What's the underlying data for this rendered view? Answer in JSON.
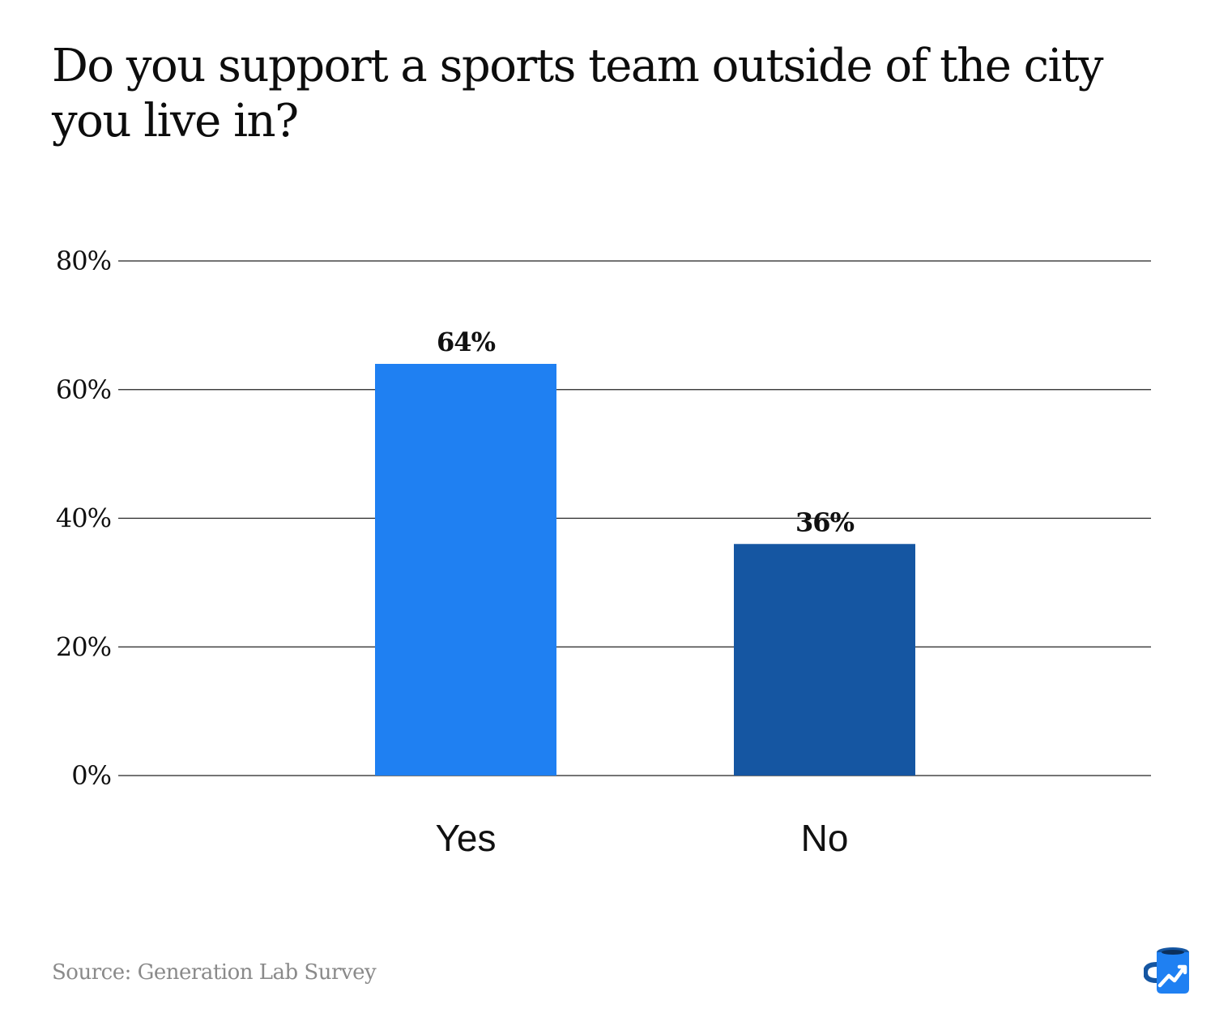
{
  "chart_data": {
    "type": "bar",
    "title": "Do you support a sports team outside of the city you live in?",
    "categories": [
      "Yes",
      "No"
    ],
    "values": [
      64,
      36
    ],
    "data_labels": [
      "64%",
      "36%"
    ],
    "ylim": [
      0,
      80
    ],
    "yticks": [
      0,
      20,
      40,
      60,
      80
    ],
    "ytick_labels": [
      "0%",
      "20%",
      "40%",
      "60%",
      "80%"
    ],
    "grid": true,
    "legend": "none",
    "colors": [
      "#1f80f2",
      "#1556a2"
    ]
  },
  "footer": {
    "source": "Source: Generation Lab Survey"
  },
  "logo": {
    "icon": "mug-chart-logo-icon",
    "colors": [
      "#1f80f2",
      "#1556a2"
    ]
  }
}
